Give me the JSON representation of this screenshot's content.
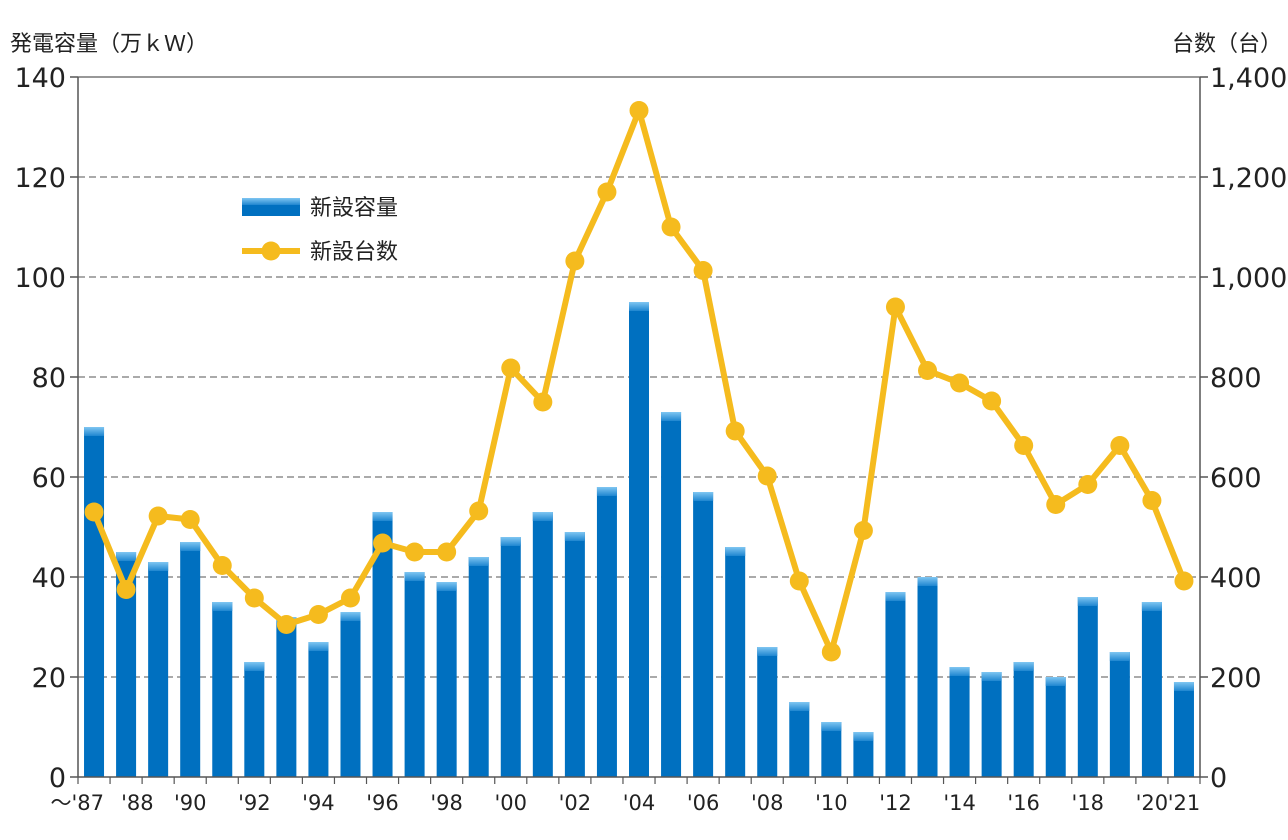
{
  "chart_data": {
    "type": "bar+line",
    "ylabel_left": "発電容量（万ｋＷ）",
    "ylabel_right": "台数（台）",
    "categories": [
      "～'87",
      "'88",
      "'89",
      "'90",
      "'91",
      "'92",
      "'93",
      "'94",
      "'95",
      "'96",
      "'97",
      "'98",
      "'99",
      "'00",
      "'01",
      "'02",
      "'03",
      "'04",
      "'05",
      "'06",
      "'07",
      "'08",
      "'09",
      "'10",
      "'11",
      "'12",
      "'13",
      "'14",
      "'15",
      "'16",
      "'17",
      "'18",
      "'19",
      "'20",
      "'21"
    ],
    "x_tick_labels": [
      "～'87",
      "'88",
      "",
      "'90",
      "",
      "'92",
      "",
      "'94",
      "",
      "'96",
      "",
      "'98",
      "",
      "'00",
      "",
      "'02",
      "",
      "'04",
      "",
      "'06",
      "",
      "'08",
      "",
      "'10",
      "",
      "'12",
      "",
      "'14",
      "",
      "'16",
      "",
      "'18",
      "",
      "'20",
      "'21"
    ],
    "ylim_left": [
      0,
      140
    ],
    "ylim_right": [
      0,
      1400
    ],
    "y_ticks_left": [
      "0",
      "20",
      "40",
      "60",
      "80",
      "100",
      "120",
      "140"
    ],
    "y_ticks_right": [
      "0",
      "200",
      "400",
      "600",
      "800",
      "1,000",
      "1,200",
      "1,400"
    ],
    "grid": true,
    "legend_position": "top-left",
    "series": [
      {
        "name": "新設容量",
        "type": "bar",
        "axis": "left",
        "color": "#0070C0",
        "values": [
          70,
          45,
          43,
          47,
          35,
          23,
          32,
          27,
          33,
          53,
          41,
          39,
          44,
          48,
          53,
          49,
          58,
          95,
          73,
          57,
          46,
          26,
          15,
          11,
          9,
          37,
          40,
          22,
          21,
          23,
          20,
          36,
          25,
          35,
          19
        ]
      },
      {
        "name": "新設台数",
        "type": "line",
        "axis": "right",
        "color": "#F5BB1E",
        "values": [
          530,
          375,
          522,
          515,
          423,
          358,
          305,
          325,
          358,
          468,
          450,
          450,
          532,
          818,
          750,
          1032,
          1170,
          1333,
          1100,
          1013,
          692,
          602,
          392,
          250,
          493,
          940,
          813,
          788,
          752,
          663,
          545,
          585,
          663,
          553,
          392
        ]
      }
    ]
  }
}
